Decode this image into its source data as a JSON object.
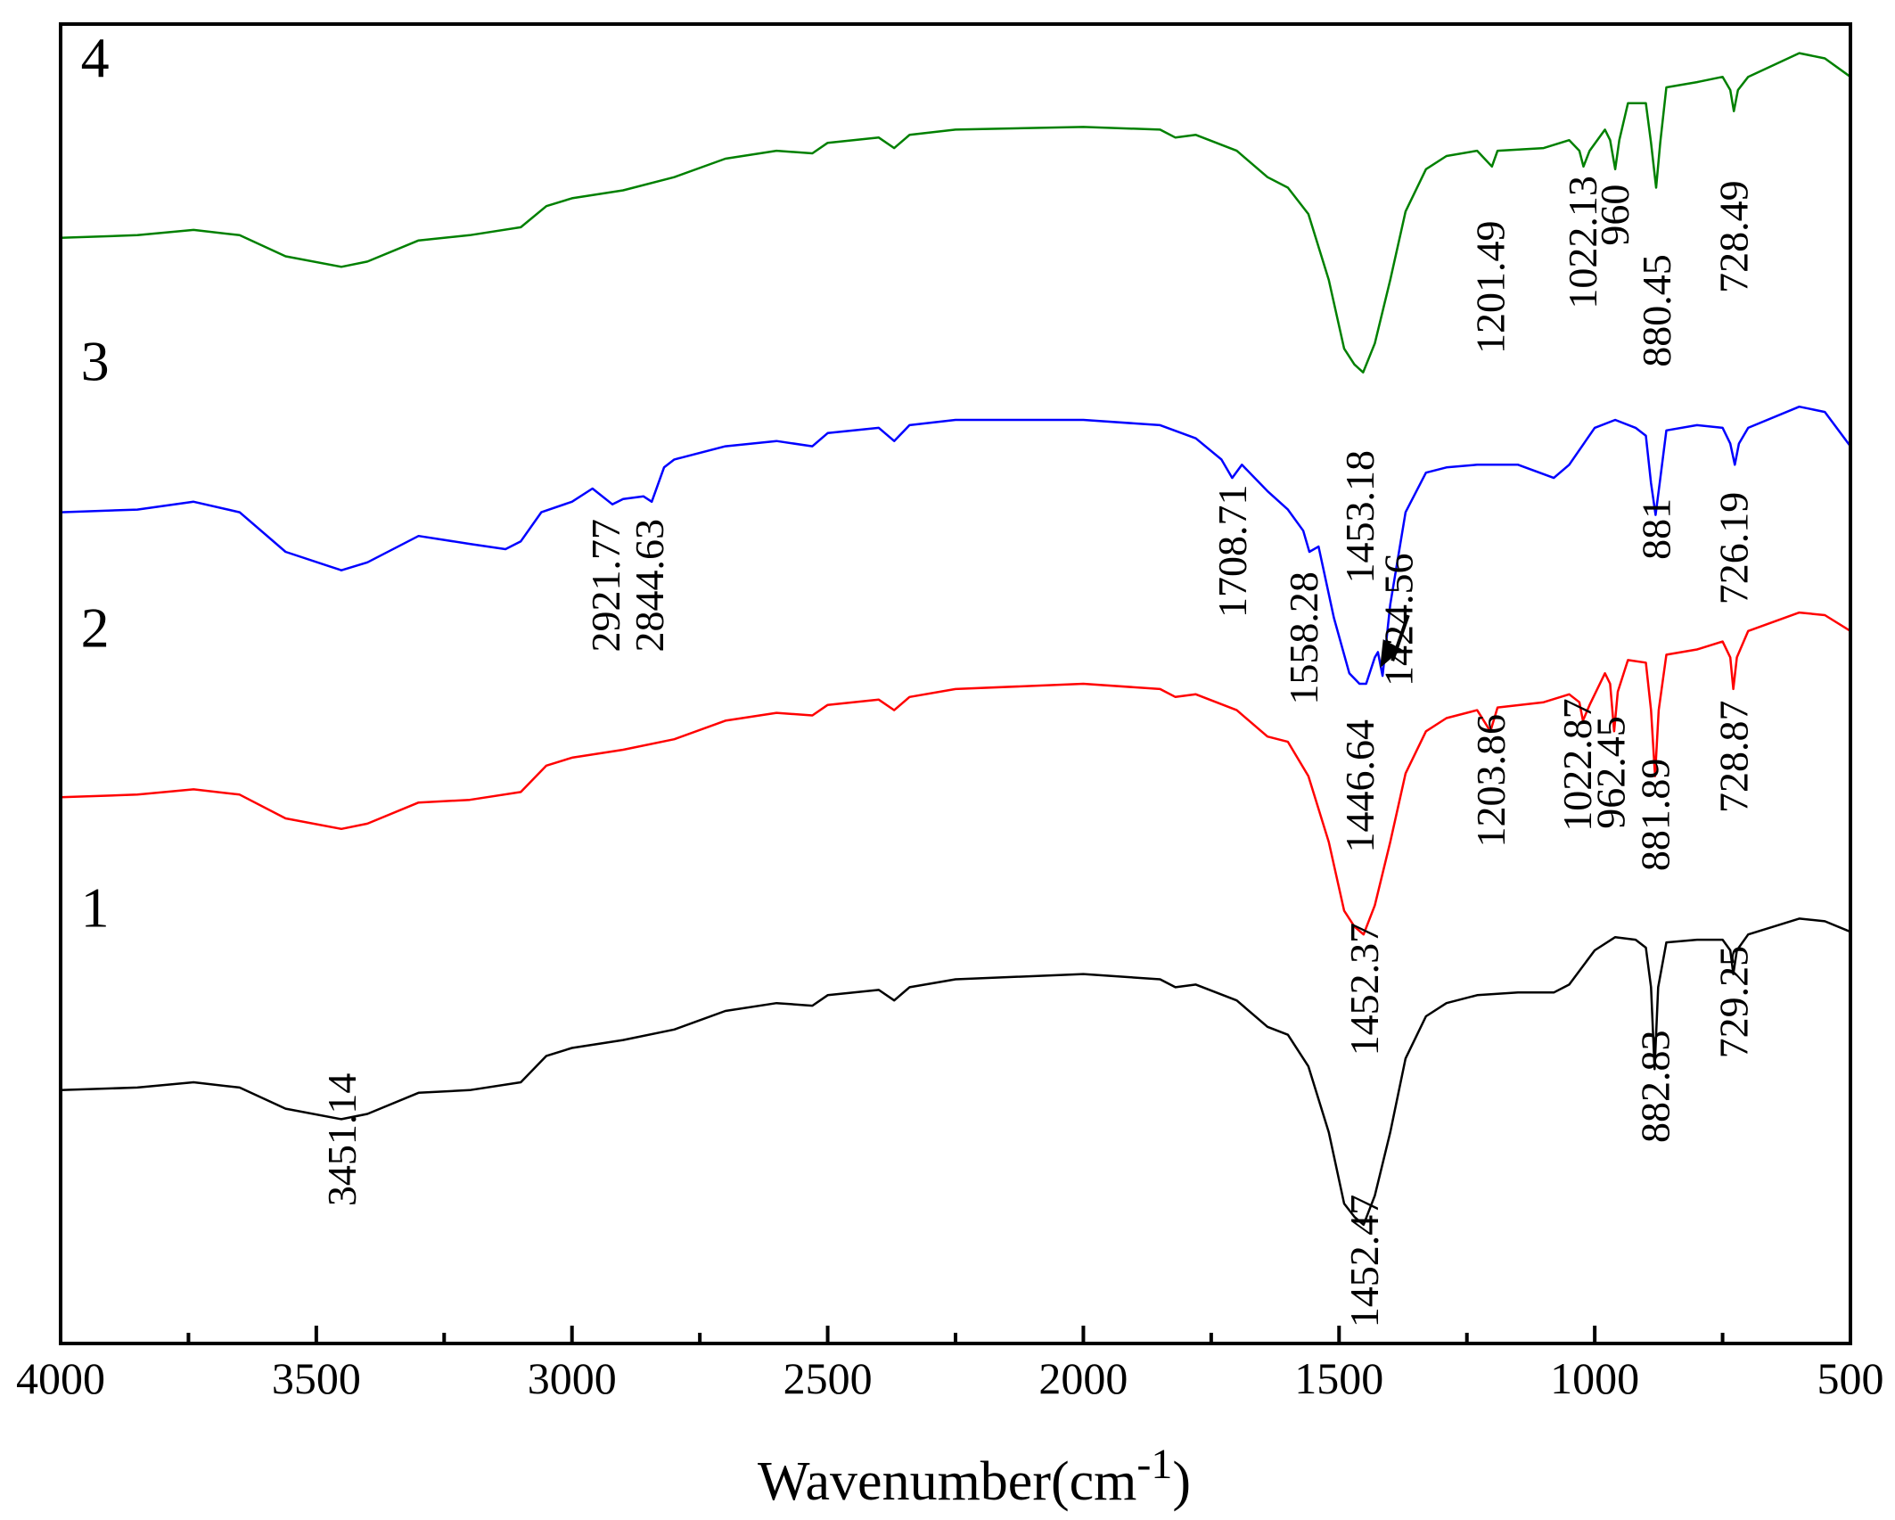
{
  "chart_data": {
    "type": "line",
    "title": "",
    "xlabel": "Wavenumber(cm",
    "xlabel_superscript": "-1",
    "xlabel_close": ")",
    "ylabel": "",
    "xlim": [
      4000,
      500
    ],
    "xticks": [
      4000,
      3500,
      3000,
      2500,
      2000,
      1500,
      1000,
      500
    ],
    "grid": false,
    "legend": "none",
    "series": [
      {
        "name": "1",
        "color": "#000000",
        "points": [
          [
            4000,
            9.6
          ],
          [
            3850,
            9.7
          ],
          [
            3740,
            9.9
          ],
          [
            3650,
            9.7
          ],
          [
            3560,
            8.9
          ],
          [
            3451,
            8.5
          ],
          [
            3400,
            8.7
          ],
          [
            3300,
            9.5
          ],
          [
            3200,
            9.6
          ],
          [
            3100,
            9.9
          ],
          [
            3050,
            10.9
          ],
          [
            3000,
            11.2
          ],
          [
            2900,
            11.5
          ],
          [
            2800,
            11.9
          ],
          [
            2700,
            12.6
          ],
          [
            2600,
            12.9
          ],
          [
            2530,
            12.8
          ],
          [
            2500,
            13.2
          ],
          [
            2400,
            13.4
          ],
          [
            2370,
            13.0
          ],
          [
            2340,
            13.5
          ],
          [
            2250,
            13.8
          ],
          [
            2000,
            14.0
          ],
          [
            1850,
            13.8
          ],
          [
            1820,
            13.5
          ],
          [
            1780,
            13.6
          ],
          [
            1700,
            13.0
          ],
          [
            1640,
            12.0
          ],
          [
            1600,
            11.7
          ],
          [
            1560,
            10.5
          ],
          [
            1520,
            8.0
          ],
          [
            1490,
            5.3
          ],
          [
            1470,
            4.8
          ],
          [
            1452,
            4.5
          ],
          [
            1430,
            5.6
          ],
          [
            1400,
            8.0
          ],
          [
            1370,
            10.8
          ],
          [
            1330,
            12.4
          ],
          [
            1290,
            12.9
          ],
          [
            1230,
            13.2
          ],
          [
            1150,
            13.3
          ],
          [
            1080,
            13.3
          ],
          [
            1050,
            13.6
          ],
          [
            1000,
            14.9
          ],
          [
            960,
            15.4
          ],
          [
            920,
            15.3
          ],
          [
            900,
            15.0
          ],
          [
            890,
            13.5
          ],
          [
            883,
            10.4
          ],
          [
            876,
            13.5
          ],
          [
            860,
            15.2
          ],
          [
            800,
            15.3
          ],
          [
            750,
            15.3
          ],
          [
            735,
            14.9
          ],
          [
            729,
            14.0
          ],
          [
            722,
            14.9
          ],
          [
            700,
            15.5
          ],
          [
            600,
            16.1
          ],
          [
            550,
            16.0
          ],
          [
            500,
            15.6
          ]
        ]
      },
      {
        "name": "2",
        "color": "#ff0000",
        "points": [
          [
            4000,
            20.7
          ],
          [
            3850,
            20.8
          ],
          [
            3740,
            21.0
          ],
          [
            3650,
            20.8
          ],
          [
            3560,
            19.9
          ],
          [
            3451,
            19.5
          ],
          [
            3400,
            19.7
          ],
          [
            3300,
            20.5
          ],
          [
            3200,
            20.6
          ],
          [
            3100,
            20.9
          ],
          [
            3050,
            21.9
          ],
          [
            3000,
            22.2
          ],
          [
            2900,
            22.5
          ],
          [
            2800,
            22.9
          ],
          [
            2700,
            23.6
          ],
          [
            2600,
            23.9
          ],
          [
            2530,
            23.8
          ],
          [
            2500,
            24.2
          ],
          [
            2400,
            24.4
          ],
          [
            2370,
            24.0
          ],
          [
            2340,
            24.5
          ],
          [
            2250,
            24.8
          ],
          [
            2000,
            25.0
          ],
          [
            1850,
            24.8
          ],
          [
            1820,
            24.5
          ],
          [
            1780,
            24.6
          ],
          [
            1700,
            24.0
          ],
          [
            1640,
            23.0
          ],
          [
            1600,
            22.8
          ],
          [
            1560,
            21.5
          ],
          [
            1520,
            19.0
          ],
          [
            1490,
            16.4
          ],
          [
            1470,
            15.8
          ],
          [
            1452,
            15.5
          ],
          [
            1430,
            16.6
          ],
          [
            1400,
            19.0
          ],
          [
            1370,
            21.6
          ],
          [
            1330,
            23.2
          ],
          [
            1290,
            23.7
          ],
          [
            1230,
            24.0
          ],
          [
            1204,
            23.2
          ],
          [
            1190,
            24.1
          ],
          [
            1100,
            24.3
          ],
          [
            1050,
            24.6
          ],
          [
            1030,
            24.3
          ],
          [
            1023,
            23.6
          ],
          [
            1010,
            24.2
          ],
          [
            980,
            25.4
          ],
          [
            970,
            25.0
          ],
          [
            962,
            23.2
          ],
          [
            955,
            24.7
          ],
          [
            935,
            25.9
          ],
          [
            900,
            25.8
          ],
          [
            890,
            24.0
          ],
          [
            882,
            21.5
          ],
          [
            875,
            24.0
          ],
          [
            860,
            26.1
          ],
          [
            800,
            26.3
          ],
          [
            750,
            26.6
          ],
          [
            735,
            26.0
          ],
          [
            729,
            24.8
          ],
          [
            722,
            26.0
          ],
          [
            700,
            27.0
          ],
          [
            600,
            27.7
          ],
          [
            550,
            27.6
          ],
          [
            500,
            27.0
          ]
        ]
      },
      {
        "name": "3",
        "color": "#0000ff",
        "points": [
          [
            4000,
            31.5
          ],
          [
            3850,
            31.6
          ],
          [
            3740,
            31.9
          ],
          [
            3650,
            31.5
          ],
          [
            3560,
            30.0
          ],
          [
            3451,
            29.3
          ],
          [
            3400,
            29.6
          ],
          [
            3300,
            30.6
          ],
          [
            3200,
            30.3
          ],
          [
            3130,
            30.1
          ],
          [
            3100,
            30.4
          ],
          [
            3060,
            31.5
          ],
          [
            3000,
            31.9
          ],
          [
            2960,
            32.4
          ],
          [
            2921,
            31.8
          ],
          [
            2900,
            32.0
          ],
          [
            2860,
            32.1
          ],
          [
            2844,
            31.9
          ],
          [
            2820,
            33.2
          ],
          [
            2800,
            33.5
          ],
          [
            2700,
            34.0
          ],
          [
            2600,
            34.2
          ],
          [
            2530,
            34.0
          ],
          [
            2500,
            34.5
          ],
          [
            2400,
            34.7
          ],
          [
            2370,
            34.2
          ],
          [
            2340,
            34.8
          ],
          [
            2250,
            35.0
          ],
          [
            2000,
            35.0
          ],
          [
            1850,
            34.8
          ],
          [
            1780,
            34.3
          ],
          [
            1730,
            33.5
          ],
          [
            1709,
            32.8
          ],
          [
            1690,
            33.3
          ],
          [
            1640,
            32.3
          ],
          [
            1600,
            31.6
          ],
          [
            1570,
            30.8
          ],
          [
            1558,
            30.0
          ],
          [
            1540,
            30.2
          ],
          [
            1510,
            27.5
          ],
          [
            1480,
            25.4
          ],
          [
            1460,
            25.0
          ],
          [
            1447,
            25.0
          ],
          [
            1430,
            26.0
          ],
          [
            1424,
            26.2
          ],
          [
            1415,
            25.3
          ],
          [
            1400,
            28.0
          ],
          [
            1370,
            31.5
          ],
          [
            1330,
            33.0
          ],
          [
            1290,
            33.2
          ],
          [
            1230,
            33.3
          ],
          [
            1150,
            33.3
          ],
          [
            1080,
            32.8
          ],
          [
            1050,
            33.3
          ],
          [
            1000,
            34.7
          ],
          [
            960,
            35.0
          ],
          [
            920,
            34.7
          ],
          [
            900,
            34.4
          ],
          [
            890,
            32.6
          ],
          [
            881,
            31.4
          ],
          [
            873,
            32.6
          ],
          [
            860,
            34.6
          ],
          [
            800,
            34.8
          ],
          [
            750,
            34.7
          ],
          [
            735,
            34.1
          ],
          [
            726,
            33.3
          ],
          [
            718,
            34.1
          ],
          [
            700,
            34.7
          ],
          [
            600,
            35.5
          ],
          [
            550,
            35.3
          ],
          [
            500,
            34.0
          ]
        ]
      },
      {
        "name": "4",
        "color": "#008000",
        "points": [
          [
            4000,
            41.9
          ],
          [
            3850,
            42.0
          ],
          [
            3740,
            42.2
          ],
          [
            3650,
            42.0
          ],
          [
            3560,
            41.2
          ],
          [
            3451,
            40.8
          ],
          [
            3400,
            41.0
          ],
          [
            3300,
            41.8
          ],
          [
            3200,
            42.0
          ],
          [
            3100,
            42.3
          ],
          [
            3050,
            43.1
          ],
          [
            3000,
            43.4
          ],
          [
            2900,
            43.7
          ],
          [
            2800,
            44.2
          ],
          [
            2700,
            44.9
          ],
          [
            2600,
            45.2
          ],
          [
            2530,
            45.1
          ],
          [
            2500,
            45.5
          ],
          [
            2400,
            45.7
          ],
          [
            2370,
            45.3
          ],
          [
            2340,
            45.8
          ],
          [
            2250,
            46.0
          ],
          [
            2000,
            46.1
          ],
          [
            1850,
            46.0
          ],
          [
            1820,
            45.7
          ],
          [
            1780,
            45.8
          ],
          [
            1700,
            45.2
          ],
          [
            1640,
            44.2
          ],
          [
            1600,
            43.8
          ],
          [
            1560,
            42.8
          ],
          [
            1520,
            40.3
          ],
          [
            1490,
            37.7
          ],
          [
            1470,
            37.1
          ],
          [
            1453,
            36.8
          ],
          [
            1430,
            37.9
          ],
          [
            1400,
            40.3
          ],
          [
            1370,
            42.9
          ],
          [
            1330,
            44.5
          ],
          [
            1290,
            45.0
          ],
          [
            1230,
            45.2
          ],
          [
            1201,
            44.6
          ],
          [
            1190,
            45.2
          ],
          [
            1100,
            45.3
          ],
          [
            1050,
            45.6
          ],
          [
            1030,
            45.2
          ],
          [
            1022,
            44.6
          ],
          [
            1010,
            45.2
          ],
          [
            980,
            46.0
          ],
          [
            970,
            45.6
          ],
          [
            960,
            44.5
          ],
          [
            952,
            45.6
          ],
          [
            935,
            47.0
          ],
          [
            900,
            47.0
          ],
          [
            890,
            45.5
          ],
          [
            880,
            43.8
          ],
          [
            872,
            45.5
          ],
          [
            860,
            47.6
          ],
          [
            800,
            47.8
          ],
          [
            750,
            48.0
          ],
          [
            735,
            47.5
          ],
          [
            728,
            46.7
          ],
          [
            720,
            47.5
          ],
          [
            700,
            48.0
          ],
          [
            600,
            48.9
          ],
          [
            550,
            48.7
          ],
          [
            500,
            48.0
          ]
        ]
      }
    ],
    "series_labels": [
      {
        "text": "1",
        "x": 3985,
        "y": 15.8
      },
      {
        "text": "2",
        "x": 3985,
        "y": 26.4
      },
      {
        "text": "3",
        "x": 3985,
        "y": 36.5
      },
      {
        "text": "4",
        "x": 3985,
        "y": 48.0
      }
    ],
    "annotations": [
      {
        "text": "3451.14",
        "x": 3451,
        "y": 5.2
      },
      {
        "text": "1452.47",
        "x": 1452,
        "y": 0.6
      },
      {
        "text": "882.83",
        "x": 883,
        "y": 7.6
      },
      {
        "text": "729.25",
        "x": 729,
        "y": 10.8
      },
      {
        "text": "1452.37",
        "x": 1452,
        "y": 10.9
      },
      {
        "text": "1203.86",
        "x": 1204,
        "y": 18.8
      },
      {
        "text": "1022.87",
        "x": 1035,
        "y": 19.4
      },
      {
        "text": "962.45",
        "x": 970,
        "y": 19.5
      },
      {
        "text": "881.89",
        "x": 883,
        "y": 17.9
      },
      {
        "text": "728.87",
        "x": 729,
        "y": 20.1
      },
      {
        "text": "1446.64",
        "x": 1460,
        "y": 18.6
      },
      {
        "text": "1558.28",
        "x": 1570,
        "y": 24.2
      },
      {
        "text": "1708.71",
        "x": 1710,
        "y": 27.5
      },
      {
        "text": "2921.77",
        "x": 2935,
        "y": 26.2
      },
      {
        "text": "2844.63",
        "x": 2850,
        "y": 26.2
      },
      {
        "text": "1453.18",
        "x": 1460,
        "y": 28.8
      },
      {
        "text": "1424.56",
        "x": 1385,
        "y": 24.9
      },
      {
        "text": "881",
        "x": 881,
        "y": 29.7
      },
      {
        "text": "726.19",
        "x": 729,
        "y": 28.0
      },
      {
        "text": "1201.49",
        "x": 1205,
        "y": 37.5
      },
      {
        "text": "1022.13",
        "x": 1025,
        "y": 39.2
      },
      {
        "text": "960",
        "x": 962,
        "y": 41.6
      },
      {
        "text": "880.45",
        "x": 880,
        "y": 37.0
      },
      {
        "text": "728.49",
        "x": 729,
        "y": 39.8
      }
    ],
    "arrow": {
      "from": [
        1365,
        27.6
      ],
      "to": [
        1420,
        25.6
      ]
    }
  }
}
